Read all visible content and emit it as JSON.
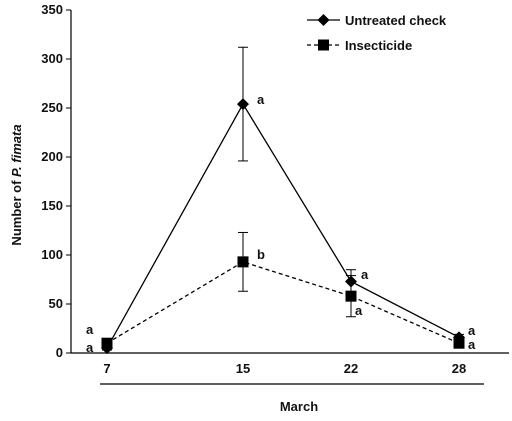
{
  "chart_data": {
    "type": "line",
    "categories": [
      "7",
      "15",
      "22",
      "28"
    ],
    "xlabel": "March",
    "ylabel_prefix": "Number of ",
    "ylabel_italic": "P. fimata",
    "ylim": [
      0,
      350
    ],
    "yticks": [
      0,
      50,
      100,
      150,
      200,
      250,
      300,
      350
    ],
    "grid": false,
    "legend_position": "top-right",
    "series": [
      {
        "name": "Untreated check",
        "marker": "diamond",
        "line": "solid",
        "values": [
          5,
          254,
          73,
          16
        ],
        "errors": [
          2,
          58,
          12,
          3
        ],
        "letters": [
          "a",
          "a",
          "a",
          "a"
        ],
        "color": "#000000"
      },
      {
        "name": "Insecticide",
        "marker": "square",
        "line": "dashed",
        "values": [
          10,
          93,
          58,
          10
        ],
        "errors": [
          2,
          30,
          21,
          3
        ],
        "letters": [
          "a",
          "b",
          "a",
          "a"
        ],
        "color": "#000000"
      }
    ]
  }
}
